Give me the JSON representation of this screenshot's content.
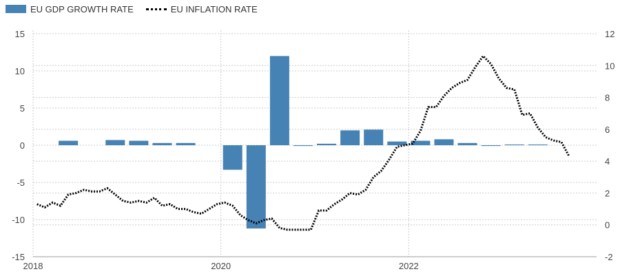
{
  "legend": {
    "gdp_label": "EU GDP GROWTH RATE",
    "inflation_label": "EU INFLATION RATE"
  },
  "colors": {
    "gdp_bar": "#4682b4",
    "inflation_line": "#000000",
    "grid": "#cccccc",
    "axis_text": "#444444"
  },
  "chart_data": {
    "type": "bar",
    "title": "",
    "xlabel": "",
    "ylabel_left": "",
    "ylabel_right": "",
    "x_ticks": [
      "2018",
      "2020",
      "2022"
    ],
    "x_range": [
      "2018-01",
      "2023-12"
    ],
    "left_axis": {
      "ylim": [
        -15,
        15
      ],
      "ticks": [
        "15",
        "10",
        "5",
        "0",
        "-5",
        "-10",
        "-15"
      ]
    },
    "right_axis": {
      "ylim": [
        -2,
        12
      ],
      "ticks": [
        "12",
        "10",
        "8",
        "6",
        "4",
        "2",
        "0",
        "-2"
      ]
    },
    "grid": true,
    "legend_position": "top-left",
    "series": [
      {
        "name": "EU GDP GROWTH RATE",
        "type": "bar",
        "axis": "left",
        "x": [
          "2018-Q2",
          "2018-Q4",
          "2019-Q1",
          "2019-Q2",
          "2019-Q3",
          "2020-Q1",
          "2020-Q2",
          "2020-Q3",
          "2020-Q4",
          "2021-Q1",
          "2021-Q2",
          "2021-Q3",
          "2021-Q4",
          "2022-Q1",
          "2022-Q2",
          "2022-Q3",
          "2022-Q4",
          "2023-Q1",
          "2023-Q2"
        ],
        "values": [
          0.6,
          0.7,
          0.6,
          0.3,
          0.3,
          -3.3,
          -11.2,
          12.0,
          -0.1,
          0.2,
          2.0,
          2.1,
          0.5,
          0.6,
          0.8,
          0.3,
          -0.1,
          0.1,
          0.1
        ]
      },
      {
        "name": "EU INFLATION RATE",
        "type": "line",
        "axis": "right",
        "x": [
          "2018-01",
          "2018-02",
          "2018-03",
          "2018-04",
          "2018-05",
          "2018-06",
          "2018-07",
          "2018-08",
          "2018-09",
          "2018-10",
          "2018-11",
          "2018-12",
          "2019-01",
          "2019-02",
          "2019-03",
          "2019-04",
          "2019-05",
          "2019-06",
          "2019-07",
          "2019-08",
          "2019-09",
          "2019-10",
          "2019-11",
          "2019-12",
          "2020-01",
          "2020-02",
          "2020-03",
          "2020-04",
          "2020-05",
          "2020-06",
          "2020-07",
          "2020-08",
          "2020-09",
          "2020-10",
          "2020-11",
          "2020-12",
          "2021-01",
          "2021-02",
          "2021-03",
          "2021-04",
          "2021-05",
          "2021-06",
          "2021-07",
          "2021-08",
          "2021-09",
          "2021-10",
          "2021-11",
          "2021-12",
          "2022-01",
          "2022-02",
          "2022-03",
          "2022-04",
          "2022-05",
          "2022-06",
          "2022-07",
          "2022-08",
          "2022-09",
          "2022-10",
          "2022-11",
          "2022-12",
          "2023-01",
          "2023-02",
          "2023-03",
          "2023-04",
          "2023-05",
          "2023-06",
          "2023-07",
          "2023-08",
          "2023-09"
        ],
        "values": [
          1.3,
          1.1,
          1.4,
          1.2,
          1.9,
          2.0,
          2.2,
          2.1,
          2.1,
          2.3,
          1.9,
          1.5,
          1.4,
          1.5,
          1.4,
          1.7,
          1.2,
          1.3,
          1.0,
          1.0,
          0.8,
          0.7,
          1.0,
          1.3,
          1.4,
          1.2,
          0.6,
          0.3,
          0.1,
          0.3,
          0.4,
          -0.2,
          -0.3,
          -0.3,
          -0.3,
          -0.3,
          0.9,
          0.9,
          1.3,
          1.6,
          2.0,
          1.9,
          2.2,
          3.0,
          3.4,
          4.1,
          4.9,
          5.0,
          5.1,
          5.9,
          7.4,
          7.4,
          8.1,
          8.6,
          8.9,
          9.1,
          9.9,
          10.6,
          10.1,
          9.2,
          8.6,
          8.5,
          6.9,
          7.0,
          6.1,
          5.5,
          5.3,
          5.2,
          4.3
        ]
      }
    ]
  }
}
